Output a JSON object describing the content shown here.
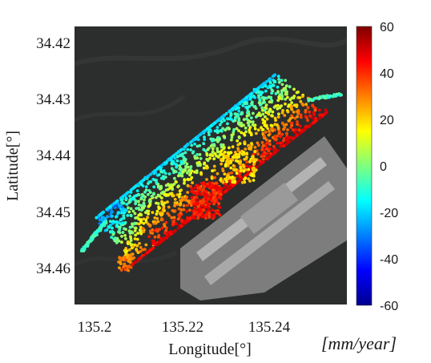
{
  "map": {
    "xlabel": "Longitude[°]",
    "ylabel": "Latitude[°]",
    "x_ticks": [
      135.2,
      135.22,
      135.24
    ],
    "y_ticks": [
      34.42,
      34.43,
      34.44,
      34.45,
      34.46
    ],
    "x_tick_labels": [
      "135.2",
      "135.22",
      "135.24"
    ],
    "y_tick_labels": [
      "34.42",
      "34.43",
      "34.44",
      "34.45",
      "34.46"
    ],
    "xlim": [
      135.1985,
      135.2555
    ],
    "ylim": [
      34.4155,
      34.4635
    ],
    "basemap": "satellite",
    "colors": {
      "sea": "#2c2e2e",
      "airport_gray": "#8a8a8a",
      "runway": "#b8b8b8"
    }
  },
  "colorbar": {
    "ticks": [
      60,
      40,
      20,
      0,
      -20,
      -40,
      -60
    ],
    "tick_labels": [
      "60",
      "40",
      "20",
      "0",
      "-20",
      "-40",
      "-60"
    ],
    "range": [
      -60,
      60
    ],
    "colormap": "jet",
    "unit": "[mm/year]"
  }
}
